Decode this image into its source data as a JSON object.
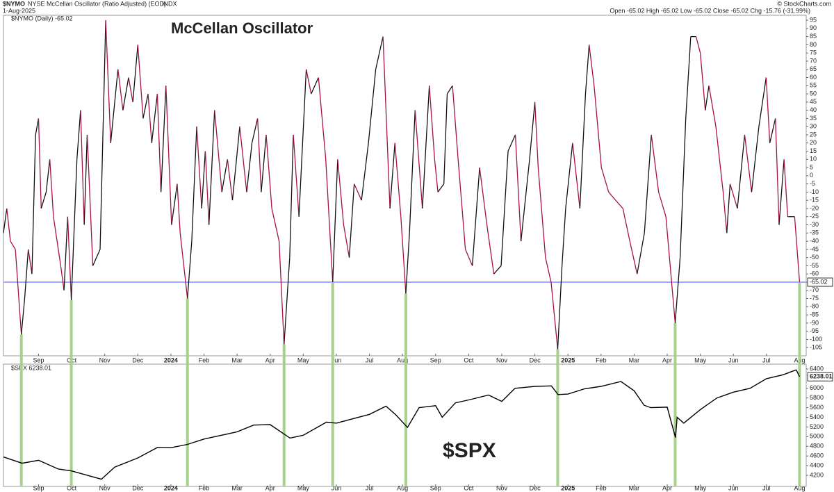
{
  "header": {
    "symbol": "$NYMO",
    "description": "NYSE McCellan Oscillator (Ratio Adjusted) (EOD)",
    "exchange": "INDX",
    "date": "1-Aug-2025",
    "quote": "Open -65.02  High -65.02  Low -65.02  Close -65.02  Chg -15.76 (-31.99%)",
    "credit": "© StockCharts.com"
  },
  "chart_data": [
    {
      "type": "line",
      "title": "McCellan Oscillator",
      "x": [
        -0.06,
        0.04,
        0.15,
        0.3,
        0.48,
        0.58,
        0.69,
        0.8,
        0.91,
        1.0,
        1.08,
        1.23,
        1.34,
        1.45,
        1.56,
        1.67,
        1.77,
        1.88,
        1.99,
        2.16,
        2.27,
        2.38,
        2.47,
        2.64,
        2.86,
        3.03,
        3.18,
        3.4,
        3.55,
        3.72,
        3.85,
        4.0,
        4.16,
        4.31,
        4.42,
        4.59,
        4.7,
        4.85,
        5.02,
        5.19,
        5.28,
        5.5,
        5.63,
        5.78,
        5.93,
        6.04,
        6.15,
        6.32,
        6.54,
        6.71,
        6.86,
        7.08,
        7.29,
        7.45,
        7.62,
        7.73,
        7.88,
        8.05,
        8.27,
        8.42,
        8.59,
        8.7,
        8.87,
        9.09,
        9.24,
        9.46,
        9.68,
        9.89,
        10.04,
        10.22,
        10.39,
        10.54,
        10.76,
        10.97,
        11.19,
        11.41,
        11.52,
        11.62,
        11.77,
        11.95,
        12.1,
        12.21,
        12.38,
        12.6,
        12.81,
        12.97,
        13.07,
        13.25,
        13.35,
        13.51,
        13.68,
        13.9,
        14.11,
        14.33,
        14.55,
        14.76,
        14.98,
        15.19,
        15.41,
        15.58,
        15.84,
        16.0,
        16.1,
        16.32,
        16.49,
        16.69,
        16.82,
        16.93,
        17.14,
        17.36,
        17.53,
        17.64,
        17.79,
        18.01,
        18.23,
        18.44,
        18.66,
        18.87,
        19.09,
        19.31,
        19.52,
        19.74,
        19.96,
        20.24,
        20.39,
        20.56,
        20.71,
        20.87,
        21.0,
        21.15,
        21.26,
        21.47,
        21.69,
        21.8,
        21.9,
        22.12,
        22.34,
        22.55,
        22.77,
        22.99,
        23.1,
        23.27,
        23.38,
        23.53,
        23.64,
        23.85,
        24.0
      ],
      "series": [
        {
          "name": "$NYMO (Daily) -65.02",
          "up_color": "#111111",
          "down_color": "#a8123e",
          "values": [
            -35,
            -20,
            -40,
            -45,
            -97,
            -75,
            -45,
            -60,
            25,
            35,
            -20,
            -10,
            10,
            -25,
            -40,
            -55,
            -70,
            -25,
            -76,
            10,
            40,
            -30,
            25,
            -55,
            -45,
            95,
            20,
            65,
            40,
            60,
            45,
            80,
            35,
            50,
            20,
            50,
            -10,
            55,
            -30,
            -5,
            -35,
            -75,
            -40,
            30,
            -20,
            15,
            -30,
            40,
            -10,
            10,
            -15,
            30,
            -10,
            20,
            35,
            -10,
            25,
            -20,
            -40,
            -103,
            -50,
            25,
            -25,
            65,
            50,
            60,
            10,
            -65,
            10,
            -30,
            -50,
            -5,
            -15,
            20,
            65,
            85,
            30,
            -20,
            20,
            -25,
            -72,
            -35,
            40,
            -20,
            55,
            10,
            -10,
            -5,
            50,
            55,
            10,
            -45,
            -55,
            5,
            -30,
            -60,
            -55,
            15,
            25,
            -40,
            10,
            45,
            5,
            -50,
            -65,
            -106,
            -55,
            -20,
            20,
            -20,
            50,
            80,
            55,
            5,
            -10,
            -15,
            -20,
            -40,
            -60,
            -35,
            25,
            -10,
            -25,
            -90,
            -50,
            35,
            85,
            85,
            75,
            40,
            55,
            30,
            -10,
            -35,
            -5,
            -20,
            25,
            -10,
            30,
            60,
            20,
            35,
            -30,
            10,
            -25,
            -25,
            -65.02
          ]
        }
      ],
      "hline": {
        "value": -65.02,
        "color": "#a0a8ff"
      },
      "highlight": {
        "x": [
          0.48,
          1.99,
          5.5,
          8.42,
          9.89,
          12.1,
          16.69,
          20.24,
          24.0
        ],
        "color": "#a9d18e"
      },
      "xlim": [
        -0.06,
        24.2
      ],
      "ylim": [
        -110,
        98
      ],
      "xticks": [
        {
          "value": 1,
          "label": "Sep"
        },
        {
          "value": 2,
          "label": "Oct"
        },
        {
          "value": 3,
          "label": "Nov"
        },
        {
          "value": 4,
          "label": "Dec"
        },
        {
          "value": 5,
          "label": "2024"
        },
        {
          "value": 6,
          "label": "Feb"
        },
        {
          "value": 7,
          "label": "Mar"
        },
        {
          "value": 8,
          "label": "Apr"
        },
        {
          "value": 9,
          "label": "May"
        },
        {
          "value": 10,
          "label": "Jun"
        },
        {
          "value": 11,
          "label": "Jul"
        },
        {
          "value": 12,
          "label": "Aug"
        },
        {
          "value": 13,
          "label": "Sep"
        },
        {
          "value": 14,
          "label": "Oct"
        },
        {
          "value": 15,
          "label": "Nov"
        },
        {
          "value": 16,
          "label": "Dec"
        },
        {
          "value": 17,
          "label": "2025"
        },
        {
          "value": 18,
          "label": "Feb"
        },
        {
          "value": 19,
          "label": "Mar"
        },
        {
          "value": 20,
          "label": "Apr"
        },
        {
          "value": 21,
          "label": "May"
        },
        {
          "value": 22,
          "label": "Jun"
        },
        {
          "value": 23,
          "label": "Jul"
        },
        {
          "value": 24,
          "label": "Aug"
        }
      ],
      "yticks": [
        -105,
        -100,
        -95,
        -90,
        -85,
        -80,
        -75,
        -70,
        -65,
        -60,
        -55,
        -50,
        -45,
        -40,
        -35,
        -30,
        -25,
        -20,
        -15,
        -10,
        -5,
        0,
        5,
        10,
        15,
        20,
        25,
        30,
        35,
        40,
        45,
        50,
        55,
        60,
        65,
        70,
        75,
        80,
        85,
        90,
        95
      ],
      "grid": false
    },
    {
      "type": "line",
      "annotation": "$SPX",
      "x": [
        -0.06,
        0.5,
        1,
        1.6,
        2,
        2.9,
        3.3,
        4,
        4.6,
        5,
        5.5,
        6,
        7,
        7.5,
        8,
        8.6,
        9,
        9.7,
        10,
        11,
        11.5,
        11.8,
        12.15,
        12.5,
        13,
        13.2,
        13.6,
        14,
        14.6,
        15,
        15.4,
        16,
        16.5,
        16.7,
        17,
        17.5,
        18,
        18.6,
        19,
        19.3,
        19.5,
        20,
        20.25,
        20.3,
        20.5,
        21,
        21.5,
        22,
        22.5,
        23,
        23.5,
        23.9,
        24
      ],
      "series": [
        {
          "name": "$SPX 6238.01",
          "color": "#000000",
          "values": [
            4580,
            4450,
            4510,
            4330,
            4290,
            4120,
            4370,
            4560,
            4780,
            4770,
            4840,
            4950,
            5100,
            5240,
            5250,
            4970,
            5030,
            5300,
            5280,
            5460,
            5630,
            5450,
            5190,
            5600,
            5640,
            5400,
            5700,
            5760,
            5860,
            5730,
            6000,
            6040,
            6050,
            5870,
            5880,
            5990,
            6040,
            6140,
            5950,
            5650,
            5600,
            5610,
            4980,
            5400,
            5280,
            5560,
            5800,
            5920,
            6000,
            6200,
            6280,
            6380,
            6238.01
          ]
        }
      ],
      "last_value": 6238.01,
      "xlim": [
        -0.06,
        24.2
      ],
      "ylim": [
        3970,
        6500
      ],
      "xticks": [
        {
          "value": 1,
          "label": "Sep"
        },
        {
          "value": 2,
          "label": "Oct"
        },
        {
          "value": 3,
          "label": "Nov"
        },
        {
          "value": 4,
          "label": "Dec"
        },
        {
          "value": 5,
          "label": "2024"
        },
        {
          "value": 6,
          "label": "Feb"
        },
        {
          "value": 7,
          "label": "Mar"
        },
        {
          "value": 8,
          "label": "Apr"
        },
        {
          "value": 9,
          "label": "May"
        },
        {
          "value": 10,
          "label": "Jun"
        },
        {
          "value": 11,
          "label": "Jul"
        },
        {
          "value": 12,
          "label": "Aug"
        },
        {
          "value": 13,
          "label": "Sep"
        },
        {
          "value": 14,
          "label": "Oct"
        },
        {
          "value": 15,
          "label": "Nov"
        },
        {
          "value": 16,
          "label": "Dec"
        },
        {
          "value": 17,
          "label": "2025"
        },
        {
          "value": 18,
          "label": "Feb"
        },
        {
          "value": 19,
          "label": "Mar"
        },
        {
          "value": 20,
          "label": "Apr"
        },
        {
          "value": 21,
          "label": "May"
        },
        {
          "value": 22,
          "label": "Jun"
        },
        {
          "value": 23,
          "label": "Jul"
        },
        {
          "value": 24,
          "label": "Aug"
        }
      ],
      "yticks": [
        4200,
        4400,
        4600,
        4800,
        5000,
        5200,
        5400,
        5600,
        5800,
        6000,
        6400
      ],
      "grid": false
    }
  ]
}
